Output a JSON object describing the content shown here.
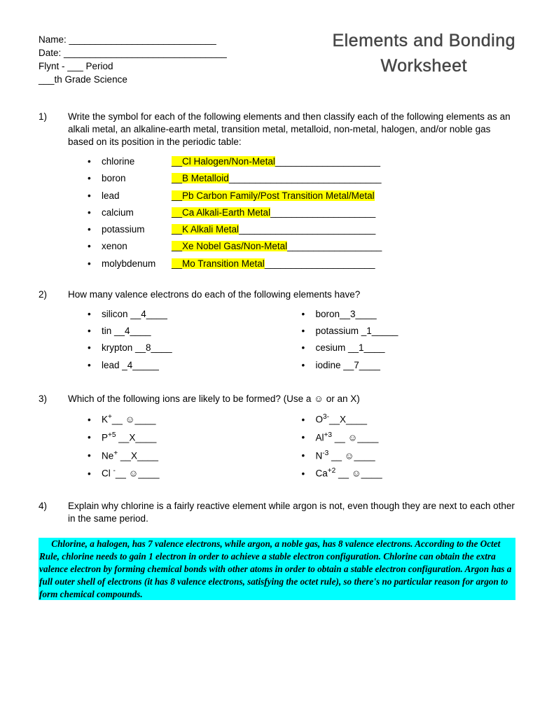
{
  "info": {
    "name_label": "Name: ",
    "name_line": "____________________________",
    "date_label": "Date: ",
    "date_line": "_______________________________",
    "flynt": "Flynt - ___ Period",
    "grade": "___th Grade Science"
  },
  "title": {
    "line1": "Elements and Bonding",
    "line2": "Worksheet"
  },
  "q1": {
    "num": "1)",
    "text": "Write the symbol for each of the following elements and then classify each of the following elements as an alkali metal, an alkaline-earth metal, transition metal, metalloid, non-metal, halogen, and/or noble gas based on its position in the periodic table:",
    "items": [
      {
        "name": "chlorine",
        "pre": "__",
        "ans": "Cl   Halogen/Non-Metal",
        "trail": "____________________"
      },
      {
        "name": "boron",
        "pre": "__",
        "ans": "B   Metalloid",
        "trail": "_____________________________"
      },
      {
        "name": "lead",
        "pre": "__",
        "ans": "Pb   Carbon Family/Post Transition Metal/Metal",
        "trail": ""
      },
      {
        "name": "calcium",
        "pre": "__",
        "ans": "Ca   Alkali-Earth Metal",
        "trail": "____________________"
      },
      {
        "name": "potassium",
        "pre": "__",
        "ans": "K   Alkali Metal",
        "trail": "__________________________"
      },
      {
        "name": "xenon",
        "pre": "__",
        "ans": "Xe   Nobel Gas/Non-Metal",
        "trail": "__________________"
      },
      {
        "name": "molybdenum",
        "pre": "__",
        "ans": "Mo   Transition Metal",
        "trail": "_____________________"
      }
    ]
  },
  "q2": {
    "num": "2)",
    "text": "How many valence electrons do each of the following elements have?",
    "left": [
      "silicon __4____",
      "tin __4____",
      "krypton __8____",
      "lead _4_____"
    ],
    "right": [
      "boron__3____",
      "potassium _1_____",
      "cesium __1____",
      "iodine __7____"
    ]
  },
  "q3": {
    "num": "3)",
    "text_pre": "Which of the following ions are likely to be formed? (Use a ",
    "smile": "☺",
    "text_post": " or an X)",
    "left": [
      {
        "base": "K",
        "sup": "+",
        "rest": "__ ☺____"
      },
      {
        "base": "P",
        "sup": "+5",
        "rest": " __X____"
      },
      {
        "base": "Ne",
        "sup": "+",
        "rest": " __X____"
      },
      {
        "base": "Cl ",
        "sup": "-",
        "rest": "__ ☺____"
      }
    ],
    "right": [
      {
        "base": "O",
        "sup": "3-",
        "rest": "__X____"
      },
      {
        "base": "Al",
        "sup": "+3",
        "rest": " __ ☺____"
      },
      {
        "base": "N",
        "sup": "-3",
        "rest": " __ ☺____"
      },
      {
        "base": "Ca",
        "sup": "+2",
        "rest": " __ ☺____"
      }
    ]
  },
  "q4": {
    "num": "4)",
    "text": "Explain why chlorine is a fairly reactive element while argon is not, even though they are next to each other in the same period.",
    "answer": "   Chlorine, a halogen, has 7 valence electrons, while argon, a noble gas, has 8 valence electrons. According to the Octet Rule, chlorine needs to gain 1 electron in order to achieve a stable electron configuration. Chlorine can obtain the extra valence electron by forming chemical bonds with other atoms in order to obtain a stable electron configuration. Argon has a full outer shell of electrons (it has 8 valence electrons, satisfying the octet rule), so there's no particular reason for argon to form chemical compounds."
  },
  "colors": {
    "highlight_yellow": "#ffff00",
    "highlight_cyan": "#00ffff",
    "background": "#ffffff",
    "text": "#000000"
  }
}
